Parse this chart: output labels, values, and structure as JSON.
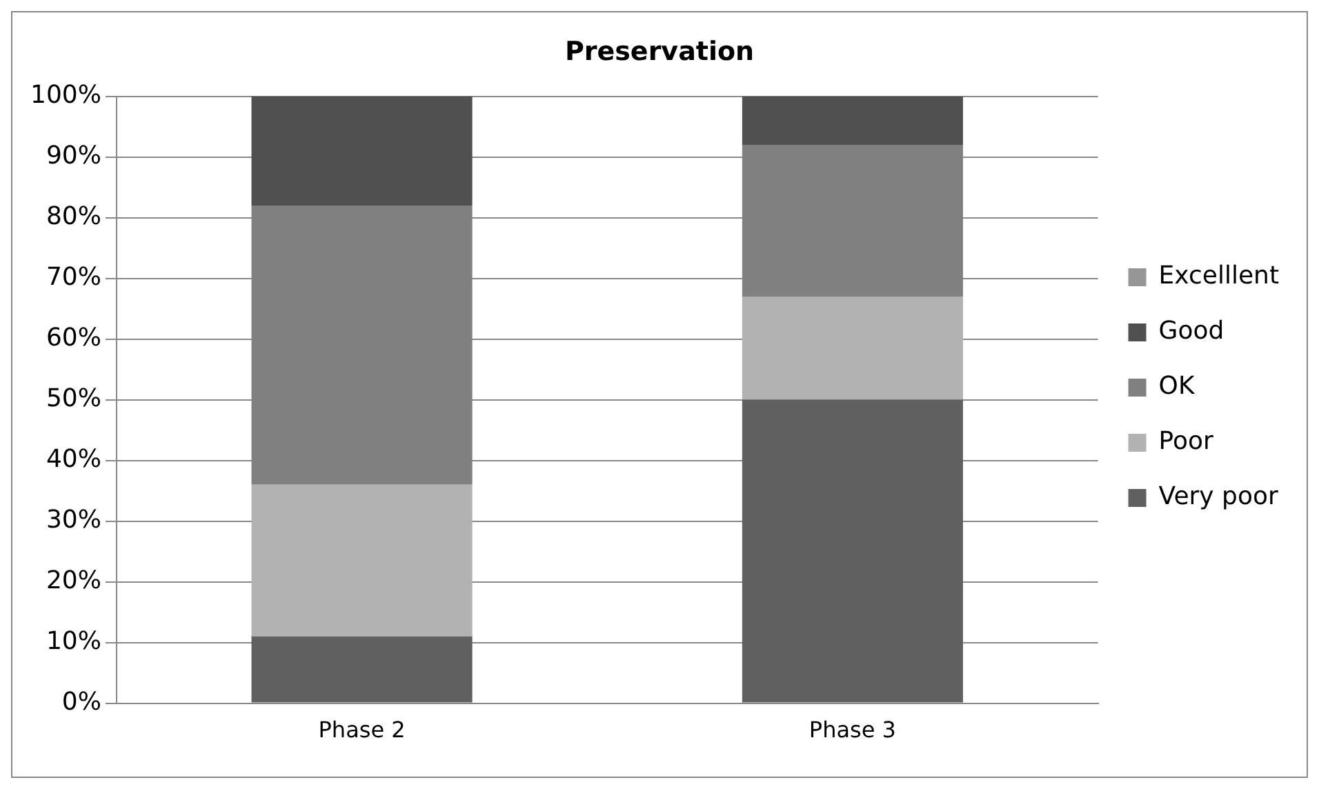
{
  "chart_data": {
    "type": "bar",
    "title": "Preservation",
    "stacked": true,
    "categories": [
      "Phase 2",
      "Phase 3"
    ],
    "series": [
      {
        "name": "Very poor",
        "color": "#606060",
        "values": [
          11,
          50
        ]
      },
      {
        "name": "Poor",
        "color": "#b2b2b2",
        "values": [
          25,
          17
        ]
      },
      {
        "name": "OK",
        "color": "#808080",
        "values": [
          46,
          25
        ]
      },
      {
        "name": "Good",
        "color": "#505050",
        "values": [
          18,
          8
        ]
      },
      {
        "name": "Excelllent",
        "color": "#969696",
        "values": [
          0,
          0
        ]
      }
    ],
    "ylim": [
      0,
      100
    ],
    "yticks": [
      {
        "value": 0,
        "label": "0%"
      },
      {
        "value": 10,
        "label": "10%"
      },
      {
        "value": 20,
        "label": "20%"
      },
      {
        "value": 30,
        "label": "30%"
      },
      {
        "value": 40,
        "label": "40%"
      },
      {
        "value": 50,
        "label": "50%"
      },
      {
        "value": 60,
        "label": "60%"
      },
      {
        "value": 70,
        "label": "70%"
      },
      {
        "value": 80,
        "label": "80%"
      },
      {
        "value": 90,
        "label": "90%"
      },
      {
        "value": 100,
        "label": "100%"
      }
    ],
    "grid": "y",
    "legend": "right"
  }
}
